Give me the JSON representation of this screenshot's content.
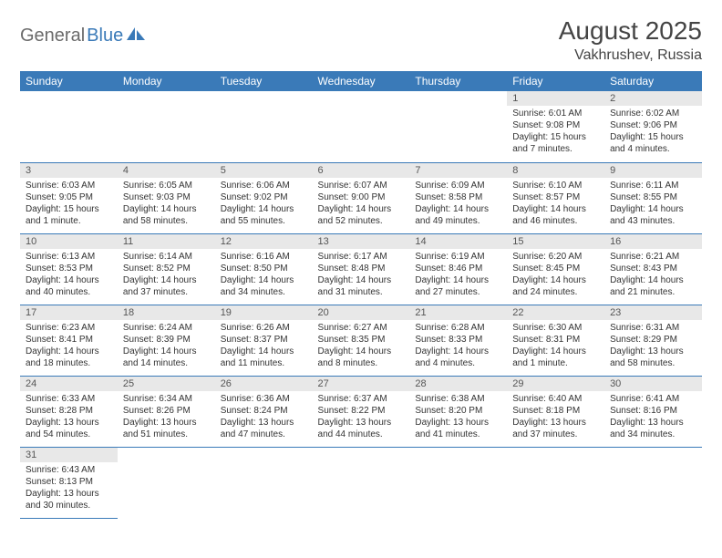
{
  "logo": {
    "part1": "General",
    "part2": "Blue"
  },
  "title": {
    "month": "August 2025",
    "location": "Vakhrushev, Russia"
  },
  "colors": {
    "header_bg": "#3a7ab8",
    "header_text": "#ffffff",
    "cell_border": "#3a7ab8",
    "daynum_bg": "#e8e8e8",
    "daynum_text": "#555555",
    "body_text": "#333333"
  },
  "weekdays": [
    "Sunday",
    "Monday",
    "Tuesday",
    "Wednesday",
    "Thursday",
    "Friday",
    "Saturday"
  ],
  "rows": [
    [
      null,
      null,
      null,
      null,
      null,
      {
        "n": "1",
        "sr": "Sunrise: 6:01 AM",
        "ss": "Sunset: 9:08 PM",
        "dl": "Daylight: 15 hours and 7 minutes."
      },
      {
        "n": "2",
        "sr": "Sunrise: 6:02 AM",
        "ss": "Sunset: 9:06 PM",
        "dl": "Daylight: 15 hours and 4 minutes."
      }
    ],
    [
      {
        "n": "3",
        "sr": "Sunrise: 6:03 AM",
        "ss": "Sunset: 9:05 PM",
        "dl": "Daylight: 15 hours and 1 minute."
      },
      {
        "n": "4",
        "sr": "Sunrise: 6:05 AM",
        "ss": "Sunset: 9:03 PM",
        "dl": "Daylight: 14 hours and 58 minutes."
      },
      {
        "n": "5",
        "sr": "Sunrise: 6:06 AM",
        "ss": "Sunset: 9:02 PM",
        "dl": "Daylight: 14 hours and 55 minutes."
      },
      {
        "n": "6",
        "sr": "Sunrise: 6:07 AM",
        "ss": "Sunset: 9:00 PM",
        "dl": "Daylight: 14 hours and 52 minutes."
      },
      {
        "n": "7",
        "sr": "Sunrise: 6:09 AM",
        "ss": "Sunset: 8:58 PM",
        "dl": "Daylight: 14 hours and 49 minutes."
      },
      {
        "n": "8",
        "sr": "Sunrise: 6:10 AM",
        "ss": "Sunset: 8:57 PM",
        "dl": "Daylight: 14 hours and 46 minutes."
      },
      {
        "n": "9",
        "sr": "Sunrise: 6:11 AM",
        "ss": "Sunset: 8:55 PM",
        "dl": "Daylight: 14 hours and 43 minutes."
      }
    ],
    [
      {
        "n": "10",
        "sr": "Sunrise: 6:13 AM",
        "ss": "Sunset: 8:53 PM",
        "dl": "Daylight: 14 hours and 40 minutes."
      },
      {
        "n": "11",
        "sr": "Sunrise: 6:14 AM",
        "ss": "Sunset: 8:52 PM",
        "dl": "Daylight: 14 hours and 37 minutes."
      },
      {
        "n": "12",
        "sr": "Sunrise: 6:16 AM",
        "ss": "Sunset: 8:50 PM",
        "dl": "Daylight: 14 hours and 34 minutes."
      },
      {
        "n": "13",
        "sr": "Sunrise: 6:17 AM",
        "ss": "Sunset: 8:48 PM",
        "dl": "Daylight: 14 hours and 31 minutes."
      },
      {
        "n": "14",
        "sr": "Sunrise: 6:19 AM",
        "ss": "Sunset: 8:46 PM",
        "dl": "Daylight: 14 hours and 27 minutes."
      },
      {
        "n": "15",
        "sr": "Sunrise: 6:20 AM",
        "ss": "Sunset: 8:45 PM",
        "dl": "Daylight: 14 hours and 24 minutes."
      },
      {
        "n": "16",
        "sr": "Sunrise: 6:21 AM",
        "ss": "Sunset: 8:43 PM",
        "dl": "Daylight: 14 hours and 21 minutes."
      }
    ],
    [
      {
        "n": "17",
        "sr": "Sunrise: 6:23 AM",
        "ss": "Sunset: 8:41 PM",
        "dl": "Daylight: 14 hours and 18 minutes."
      },
      {
        "n": "18",
        "sr": "Sunrise: 6:24 AM",
        "ss": "Sunset: 8:39 PM",
        "dl": "Daylight: 14 hours and 14 minutes."
      },
      {
        "n": "19",
        "sr": "Sunrise: 6:26 AM",
        "ss": "Sunset: 8:37 PM",
        "dl": "Daylight: 14 hours and 11 minutes."
      },
      {
        "n": "20",
        "sr": "Sunrise: 6:27 AM",
        "ss": "Sunset: 8:35 PM",
        "dl": "Daylight: 14 hours and 8 minutes."
      },
      {
        "n": "21",
        "sr": "Sunrise: 6:28 AM",
        "ss": "Sunset: 8:33 PM",
        "dl": "Daylight: 14 hours and 4 minutes."
      },
      {
        "n": "22",
        "sr": "Sunrise: 6:30 AM",
        "ss": "Sunset: 8:31 PM",
        "dl": "Daylight: 14 hours and 1 minute."
      },
      {
        "n": "23",
        "sr": "Sunrise: 6:31 AM",
        "ss": "Sunset: 8:29 PM",
        "dl": "Daylight: 13 hours and 58 minutes."
      }
    ],
    [
      {
        "n": "24",
        "sr": "Sunrise: 6:33 AM",
        "ss": "Sunset: 8:28 PM",
        "dl": "Daylight: 13 hours and 54 minutes."
      },
      {
        "n": "25",
        "sr": "Sunrise: 6:34 AM",
        "ss": "Sunset: 8:26 PM",
        "dl": "Daylight: 13 hours and 51 minutes."
      },
      {
        "n": "26",
        "sr": "Sunrise: 6:36 AM",
        "ss": "Sunset: 8:24 PM",
        "dl": "Daylight: 13 hours and 47 minutes."
      },
      {
        "n": "27",
        "sr": "Sunrise: 6:37 AM",
        "ss": "Sunset: 8:22 PM",
        "dl": "Daylight: 13 hours and 44 minutes."
      },
      {
        "n": "28",
        "sr": "Sunrise: 6:38 AM",
        "ss": "Sunset: 8:20 PM",
        "dl": "Daylight: 13 hours and 41 minutes."
      },
      {
        "n": "29",
        "sr": "Sunrise: 6:40 AM",
        "ss": "Sunset: 8:18 PM",
        "dl": "Daylight: 13 hours and 37 minutes."
      },
      {
        "n": "30",
        "sr": "Sunrise: 6:41 AM",
        "ss": "Sunset: 8:16 PM",
        "dl": "Daylight: 13 hours and 34 minutes."
      }
    ],
    [
      {
        "n": "31",
        "sr": "Sunrise: 6:43 AM",
        "ss": "Sunset: 8:13 PM",
        "dl": "Daylight: 13 hours and 30 minutes."
      },
      null,
      null,
      null,
      null,
      null,
      null
    ]
  ]
}
